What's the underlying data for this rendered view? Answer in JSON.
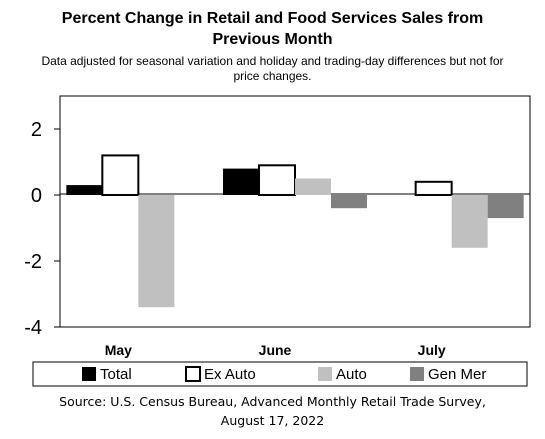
{
  "title_line1": "Percent Change in Retail and Food Services Sales from",
  "title_line2": "Previous Month",
  "subtitle_line1": "Data adjusted for seasonal variation and holiday and trading-day differences but not for",
  "subtitle_line2": "price changes.",
  "source_line1": "Source: U.S. Census Bureau, Advanced Monthly Retail Trade Survey,",
  "source_line2": "August 17, 2022",
  "colors": {
    "total": "#000000",
    "ex_auto": "#ffffff",
    "auto": "#c0c0c0",
    "gen_mer": "#808080"
  },
  "chart_data": {
    "type": "bar",
    "categories": [
      "May",
      "June",
      "July"
    ],
    "series": [
      {
        "name": "Total",
        "values": [
          0.3,
          0.8,
          null
        ]
      },
      {
        "name": "Ex Auto",
        "values": [
          1.2,
          0.9,
          0.4
        ]
      },
      {
        "name": "Auto",
        "values": [
          -3.4,
          0.5,
          -1.6
        ]
      },
      {
        "name": "Gen Mer",
        "values": [
          null,
          -0.4,
          -0.7
        ]
      }
    ],
    "ylim": [
      -4,
      3
    ],
    "yticks": [
      2,
      0,
      -2,
      -4
    ],
    "ytick_labels": [
      "2",
      "0",
      "-2",
      "-4"
    ],
    "grid": false,
    "legend_position": "bottom"
  }
}
